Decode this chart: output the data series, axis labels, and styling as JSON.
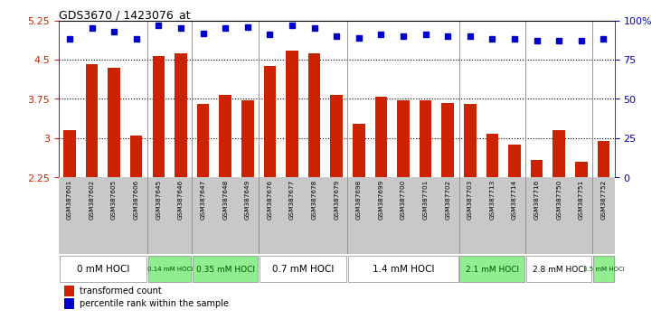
{
  "title": "GDS3670 / 1423076_at",
  "samples": [
    "GSM387601",
    "GSM387602",
    "GSM387605",
    "GSM387606",
    "GSM387645",
    "GSM387646",
    "GSM387647",
    "GSM387648",
    "GSM387649",
    "GSM387676",
    "GSM387677",
    "GSM387678",
    "GSM387679",
    "GSM387698",
    "GSM387699",
    "GSM387700",
    "GSM387701",
    "GSM387702",
    "GSM387703",
    "GSM387713",
    "GSM387714",
    "GSM387716",
    "GSM387750",
    "GSM387751",
    "GSM387752"
  ],
  "bar_values": [
    3.15,
    4.42,
    4.35,
    3.05,
    4.57,
    4.62,
    3.65,
    3.83,
    3.73,
    4.38,
    4.67,
    4.62,
    3.82,
    3.27,
    3.8,
    3.73,
    3.72,
    3.68,
    3.65,
    3.08,
    2.88,
    2.58,
    3.15,
    2.55,
    2.95
  ],
  "percentile_values": [
    88,
    95,
    93,
    88,
    97,
    95,
    92,
    95,
    96,
    91,
    97,
    95,
    90,
    89,
    91,
    90,
    91,
    90,
    90,
    88,
    88,
    87,
    87,
    87,
    88
  ],
  "dose_groups": [
    {
      "label": "0 mM HOCl",
      "count": 4,
      "green": false
    },
    {
      "label": "0.14 mM HOCl",
      "count": 2,
      "green": true
    },
    {
      "label": "0.35 mM HOCl",
      "count": 3,
      "green": true
    },
    {
      "label": "0.7 mM HOCl",
      "count": 4,
      "green": false
    },
    {
      "label": "1.4 mM HOCl",
      "count": 5,
      "green": false
    },
    {
      "label": "2.1 mM HOCl",
      "count": 3,
      "green": true
    },
    {
      "label": "2.8 mM HOCl",
      "count": 3,
      "green": false
    },
    {
      "label": "3.5 mM HOCl",
      "count": 1,
      "green": true
    }
  ],
  "ylim_min": 2.25,
  "ylim_max": 5.25,
  "yticks": [
    2.25,
    3.0,
    3.75,
    4.5,
    5.25
  ],
  "ytick_labels": [
    "2.25",
    "3",
    "3.75",
    "4.5",
    "5.25"
  ],
  "y2ticks": [
    0,
    25,
    50,
    75,
    100
  ],
  "y2tick_labels": [
    "0",
    "25",
    "50",
    "75",
    "100%"
  ],
  "gridlines_at": [
    3.0,
    3.75,
    4.5
  ],
  "bar_color": "#cc2200",
  "dot_color": "#0000cc",
  "bg_color": "#ffffff",
  "sample_bg_color": "#c8c8c8",
  "dose_dark_bg": "#3a3a3a",
  "green_color": "#90ee90",
  "white_color": "#ffffff",
  "sep_color": "#888888",
  "left_tick_color": "#cc2200",
  "right_tick_color": "#0000cc",
  "legend_bar_label": "transformed count",
  "legend_dot_label": "percentile rank within the sample"
}
